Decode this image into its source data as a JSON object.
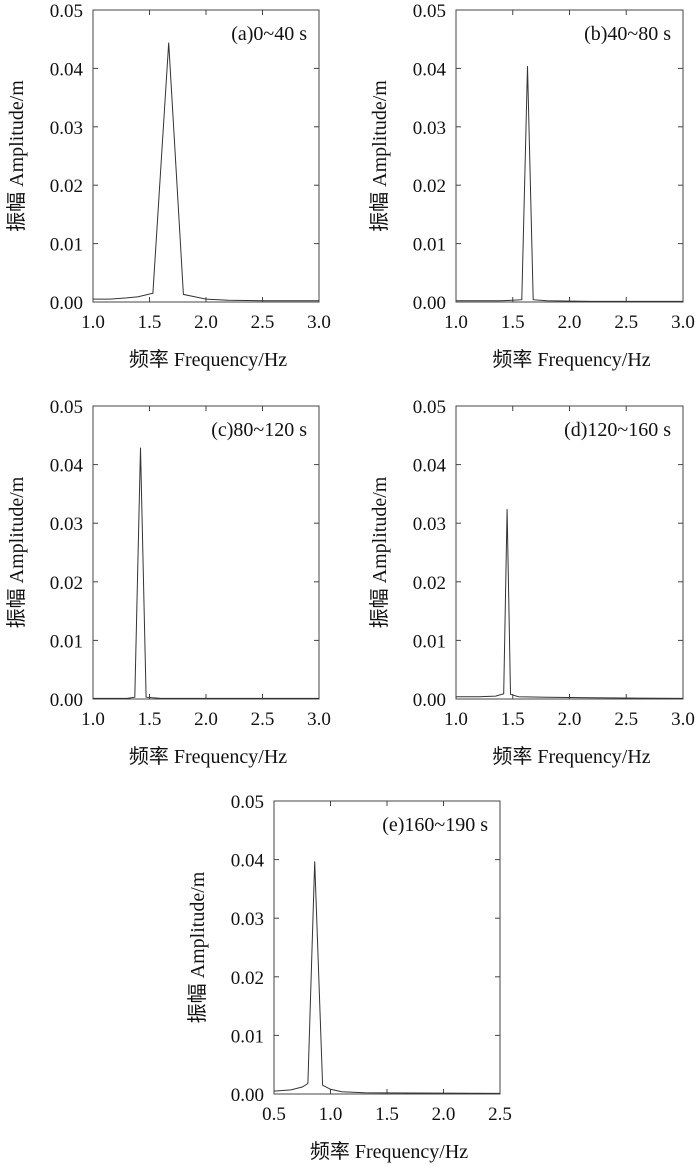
{
  "chart_data": [
    {
      "type": "line",
      "annotation": "(a)0~40 s",
      "xlabel": "频率 Frequency/Hz",
      "ylabel": "振幅 Amplitude/m",
      "xlim": [
        1.0,
        3.0
      ],
      "ylim": [
        0.0,
        0.05
      ],
      "xticks": [
        "1.0",
        "1.5",
        "2.0",
        "2.5",
        "3.0"
      ],
      "yticks": [
        "0.00",
        "0.01",
        "0.02",
        "0.03",
        "0.04",
        "0.05"
      ],
      "grid": false,
      "series": [
        {
          "x": [
            1.0,
            1.15,
            1.3,
            1.4,
            1.53,
            1.67,
            1.8,
            1.9,
            2.0,
            2.2,
            2.5,
            3.0
          ],
          "y": [
            0.0005,
            0.0005,
            0.0007,
            0.0009,
            0.0015,
            0.0444,
            0.0013,
            0.0009,
            0.0005,
            0.0003,
            0.0002,
            0.0002
          ]
        }
      ]
    },
    {
      "type": "line",
      "annotation": "(b)40~80 s",
      "xlabel": "频率 Frequency/Hz",
      "ylabel": "振幅 Amplitude/m",
      "xlim": [
        1.0,
        3.0
      ],
      "ylim": [
        0.0,
        0.05
      ],
      "xticks": [
        "1.0",
        "1.5",
        "2.0",
        "2.5",
        "3.0"
      ],
      "yticks": [
        "0.00",
        "0.01",
        "0.02",
        "0.03",
        "0.04",
        "0.05"
      ],
      "grid": false,
      "series": [
        {
          "x": [
            1.0,
            1.4,
            1.58,
            1.63,
            1.68,
            1.8,
            2.2,
            3.0
          ],
          "y": [
            0.0002,
            0.0002,
            0.0004,
            0.0404,
            0.0004,
            0.0002,
            0.0001,
            0.0001
          ]
        }
      ]
    },
    {
      "type": "line",
      "annotation": "(c)80~120 s",
      "xlabel": "频率 Frequency/Hz",
      "ylabel": "振幅 Amplitude/m",
      "xlim": [
        1.0,
        3.0
      ],
      "ylim": [
        0.0,
        0.05
      ],
      "xticks": [
        "1.0",
        "1.5",
        "2.0",
        "2.5",
        "3.0"
      ],
      "yticks": [
        "0.00",
        "0.01",
        "0.02",
        "0.03",
        "0.04",
        "0.05"
      ],
      "grid": false,
      "series": [
        {
          "x": [
            1.0,
            1.3,
            1.37,
            1.42,
            1.47,
            1.6,
            2.0,
            3.0
          ],
          "y": [
            0.0001,
            0.0001,
            0.0003,
            0.0429,
            0.0003,
            0.0001,
            0.0001,
            0.0001
          ]
        }
      ]
    },
    {
      "type": "line",
      "annotation": "(d)120~160 s",
      "xlabel": "频率 Frequency/Hz",
      "ylabel": "振幅 Amplitude/m",
      "xlim": [
        1.0,
        3.0
      ],
      "ylim": [
        0.0,
        0.05
      ],
      "xticks": [
        "1.0",
        "1.5",
        "2.0",
        "2.5",
        "3.0"
      ],
      "yticks": [
        "0.00",
        "0.01",
        "0.02",
        "0.03",
        "0.04",
        "0.05"
      ],
      "grid": false,
      "series": [
        {
          "x": [
            1.0,
            1.2,
            1.35,
            1.42,
            1.45,
            1.48,
            1.55,
            1.8,
            2.2,
            3.0
          ],
          "y": [
            0.0004,
            0.0004,
            0.0005,
            0.0009,
            0.0324,
            0.0008,
            0.0004,
            0.0003,
            0.0002,
            0.0001
          ]
        }
      ]
    },
    {
      "type": "line",
      "annotation": "(e)160~190 s",
      "xlabel": "频率 Frequency/Hz",
      "ylabel": "振幅 Amplitude/m",
      "xlim": [
        0.5,
        2.5
      ],
      "ylim": [
        0.0,
        0.05
      ],
      "xticks": [
        "0.5",
        "1.0",
        "1.5",
        "2.0",
        "2.5"
      ],
      "yticks": [
        "0.00",
        "0.01",
        "0.02",
        "0.03",
        "0.04",
        "0.05"
      ],
      "grid": false,
      "series": [
        {
          "x": [
            0.5,
            0.65,
            0.75,
            0.8,
            0.86,
            0.93,
            1.0,
            1.1,
            1.3,
            2.5
          ],
          "y": [
            0.0005,
            0.0007,
            0.0012,
            0.0018,
            0.0397,
            0.0015,
            0.0008,
            0.0004,
            0.0002,
            0.0001
          ]
        }
      ]
    }
  ]
}
